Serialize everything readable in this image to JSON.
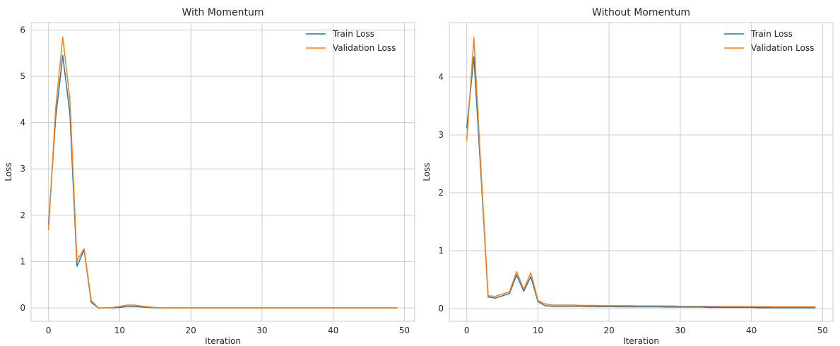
{
  "chart_data": [
    {
      "type": "line",
      "title": "With Momentum",
      "xlabel": "Iteration",
      "ylabel": "Loss",
      "xlim": [
        -2.45,
        51.45
      ],
      "ylim": [
        -0.29,
        6.16
      ],
      "xticks": [
        0,
        10,
        20,
        30,
        40,
        50
      ],
      "yticks": [
        0,
        1,
        2,
        3,
        4,
        5,
        6
      ],
      "grid": true,
      "legend_position": "top-right",
      "x": [
        0,
        1,
        2,
        3,
        4,
        5,
        6,
        7,
        8,
        9,
        10,
        11,
        12,
        13,
        14,
        15,
        16,
        17,
        18,
        19,
        20,
        21,
        22,
        23,
        24,
        25,
        26,
        27,
        28,
        29,
        30,
        31,
        32,
        33,
        34,
        35,
        36,
        37,
        38,
        39,
        40,
        41,
        42,
        43,
        44,
        45,
        46,
        47,
        48,
        49
      ],
      "series": [
        {
          "name": "Train Loss",
          "color": "#1f77b4",
          "values": [
            1.8,
            4.1,
            5.45,
            4.2,
            0.9,
            1.25,
            0.12,
            0.0,
            0.0,
            0.0,
            0.01,
            0.03,
            0.03,
            0.02,
            0.01,
            0.0,
            0.0,
            0.0,
            0.0,
            0.0,
            0.0,
            0.0,
            0.0,
            0.0,
            0.0,
            0.0,
            0.0,
            0.0,
            0.0,
            0.0,
            0.0,
            0.0,
            0.0,
            0.0,
            0.0,
            0.0,
            0.0,
            0.0,
            0.0,
            0.0,
            0.0,
            0.0,
            0.0,
            0.0,
            0.0,
            0.0,
            0.0,
            0.0,
            0.0,
            0.0
          ]
        },
        {
          "name": "Validation Loss",
          "color": "#ff7f0e",
          "values": [
            1.68,
            4.3,
            5.85,
            4.5,
            1.02,
            1.28,
            0.16,
            0.0,
            0.0,
            0.01,
            0.03,
            0.06,
            0.06,
            0.04,
            0.02,
            0.01,
            0.0,
            0.0,
            0.0,
            0.0,
            0.0,
            0.0,
            0.0,
            0.0,
            0.0,
            0.0,
            0.0,
            0.0,
            0.0,
            0.0,
            0.0,
            0.0,
            0.0,
            0.0,
            0.0,
            0.0,
            0.0,
            0.0,
            0.0,
            0.0,
            0.0,
            0.0,
            0.0,
            0.0,
            0.0,
            0.0,
            0.0,
            0.0,
            0.0,
            0.0
          ]
        }
      ]
    },
    {
      "type": "line",
      "title": "Without Momentum",
      "xlabel": "Iteration",
      "ylabel": "Loss",
      "xlim": [
        -2.45,
        51.45
      ],
      "ylim": [
        -0.22,
        4.94
      ],
      "xticks": [
        0,
        10,
        20,
        30,
        40,
        50
      ],
      "yticks": [
        0,
        1,
        2,
        3,
        4
      ],
      "grid": true,
      "legend_position": "top-right",
      "x": [
        0,
        1,
        2,
        3,
        4,
        5,
        6,
        7,
        8,
        9,
        10,
        11,
        12,
        13,
        14,
        15,
        16,
        17,
        18,
        19,
        20,
        21,
        22,
        23,
        24,
        25,
        26,
        27,
        28,
        29,
        30,
        31,
        32,
        33,
        34,
        35,
        36,
        37,
        38,
        39,
        40,
        41,
        42,
        43,
        44,
        45,
        46,
        47,
        48,
        49
      ],
      "series": [
        {
          "name": "Train Loss",
          "color": "#1f77b4",
          "values": [
            3.12,
            4.35,
            2.3,
            0.2,
            0.18,
            0.22,
            0.26,
            0.58,
            0.3,
            0.55,
            0.12,
            0.05,
            0.04,
            0.04,
            0.04,
            0.04,
            0.04,
            0.035,
            0.035,
            0.035,
            0.035,
            0.03,
            0.03,
            0.03,
            0.03,
            0.03,
            0.03,
            0.03,
            0.025,
            0.025,
            0.025,
            0.025,
            0.025,
            0.025,
            0.02,
            0.02,
            0.02,
            0.02,
            0.02,
            0.02,
            0.02,
            0.015,
            0.015,
            0.015,
            0.015,
            0.015,
            0.015,
            0.015,
            0.015,
            0.015
          ]
        },
        {
          "name": "Validation Loss",
          "color": "#ff7f0e",
          "values": [
            2.9,
            4.68,
            2.4,
            0.22,
            0.21,
            0.25,
            0.29,
            0.64,
            0.33,
            0.62,
            0.14,
            0.08,
            0.06,
            0.06,
            0.06,
            0.06,
            0.055,
            0.055,
            0.055,
            0.05,
            0.05,
            0.05,
            0.05,
            0.05,
            0.045,
            0.045,
            0.045,
            0.045,
            0.045,
            0.045,
            0.04,
            0.04,
            0.04,
            0.04,
            0.04,
            0.04,
            0.035,
            0.035,
            0.035,
            0.035,
            0.035,
            0.035,
            0.035,
            0.03,
            0.03,
            0.03,
            0.03,
            0.03,
            0.03,
            0.03
          ]
        }
      ]
    }
  ]
}
